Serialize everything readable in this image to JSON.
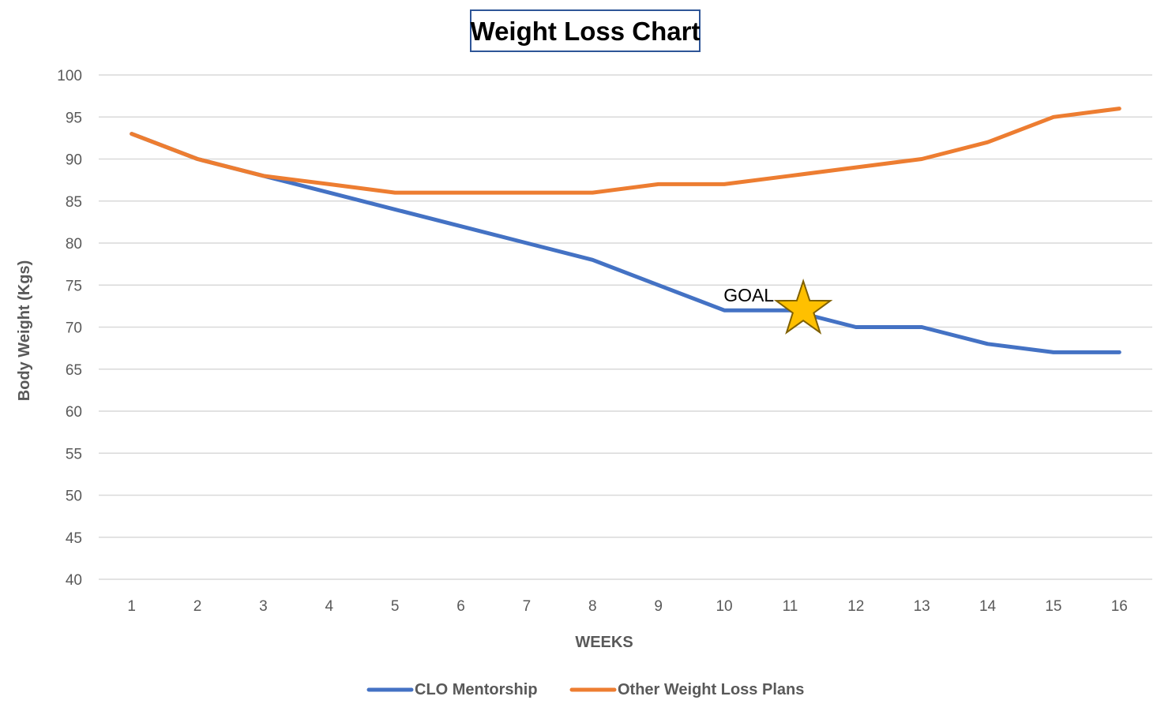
{
  "chart_data": {
    "type": "line",
    "title": "Weight Loss Chart",
    "xlabel": "WEEKS",
    "ylabel": "Body Weight (Kgs)",
    "categories": [
      "1",
      "2",
      "3",
      "4",
      "5",
      "6",
      "7",
      "8",
      "9",
      "10",
      "11",
      "12",
      "13",
      "14",
      "15",
      "16"
    ],
    "ylim": [
      40,
      100
    ],
    "yticks": [
      40,
      45,
      50,
      55,
      60,
      65,
      70,
      75,
      80,
      85,
      90,
      95,
      100
    ],
    "grid": true,
    "legend_position": "bottom",
    "series": [
      {
        "name": "CLO Mentorship",
        "color": "#4472C4",
        "values": [
          93,
          90,
          88,
          86,
          84,
          82,
          80,
          78,
          75,
          72,
          72,
          70,
          70,
          68,
          67,
          67
        ]
      },
      {
        "name": "Other Weight Loss Plans",
        "color": "#ED7D31",
        "values": [
          93,
          90,
          88,
          87,
          86,
          86,
          86,
          86,
          87,
          87,
          88,
          89,
          90,
          92,
          95,
          96
        ]
      }
    ],
    "annotations": [
      {
        "text": "GOAL",
        "x": 11.2,
        "y": 72,
        "marker": "star-icon",
        "marker_color": "#FFC000",
        "marker_stroke": "#7F6000"
      }
    ]
  }
}
